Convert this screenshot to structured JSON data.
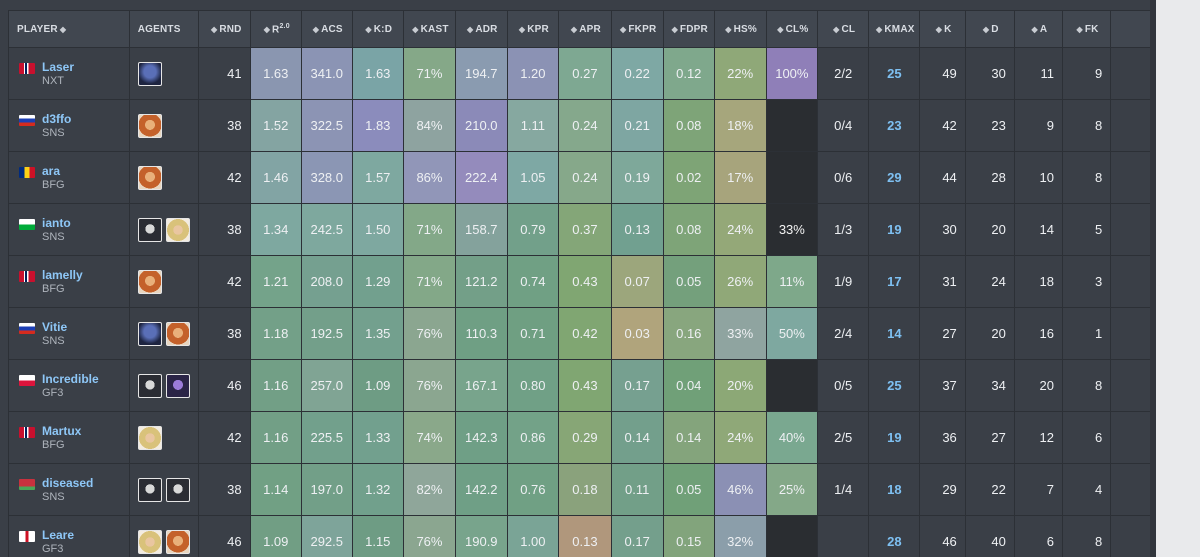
{
  "headers": {
    "player": "PLAYER",
    "agents": "AGENTS",
    "rnd": "RND",
    "rating_prefix": "R",
    "rating_sup": "2.0",
    "acs": "ACS",
    "kd": "K:D",
    "kast": "KAST",
    "adr": "ADR",
    "kpr": "KPR",
    "apr": "APR",
    "fkpr": "FKPR",
    "fdpr": "FDPR",
    "hs": "HS%",
    "clp": "CL%",
    "cl": "CL",
    "kmax": "KMAX",
    "k": "K",
    "d": "D",
    "a": "A",
    "fk": "FK"
  },
  "sort_icon": "sort-arrows-icon",
  "rows": [
    {
      "name": "Laser",
      "team": "NXT",
      "flag": "norway",
      "agents": [
        "agent-blue-hood",
        ""
      ],
      "rnd": "41",
      "rating": "1.63",
      "acs": "341.0",
      "kd": "1.63",
      "kast": "71%",
      "adr": "194.7",
      "kpr": "1.20",
      "apr": "0.27",
      "fkpr": "0.22",
      "fdpr": "0.12",
      "hs": "22%",
      "clp": "100%",
      "cl": "2/2",
      "kmax": "25",
      "k": "49",
      "d": "30",
      "a": "11",
      "fk": "9"
    },
    {
      "name": "d3ffo",
      "team": "SNS",
      "flag": "russia",
      "agents": [
        "agent-orange-helmet"
      ],
      "rnd": "38",
      "rating": "1.52",
      "acs": "322.5",
      "kd": "1.83",
      "kast": "84%",
      "adr": "210.0",
      "kpr": "1.11",
      "apr": "0.24",
      "fkpr": "0.21",
      "fdpr": "0.08",
      "hs": "18%",
      "clp": "",
      "cl": "0/4",
      "kmax": "23",
      "k": "42",
      "d": "23",
      "a": "9",
      "fk": "8"
    },
    {
      "name": "ara",
      "team": "BFG",
      "flag": "romania",
      "agents": [
        "agent-orange-helmet"
      ],
      "rnd": "42",
      "rating": "1.46",
      "acs": "328.0",
      "kd": "1.57",
      "kast": "86%",
      "adr": "222.4",
      "kpr": "1.05",
      "apr": "0.24",
      "fkpr": "0.19",
      "fdpr": "0.02",
      "hs": "17%",
      "clp": "",
      "cl": "0/6",
      "kmax": "29",
      "k": "44",
      "d": "28",
      "a": "10",
      "fk": "8"
    },
    {
      "name": "ianto",
      "team": "SNS",
      "flag": "wales",
      "agents": [
        "agent-dark-mask",
        "agent-blonde"
      ],
      "rnd": "38",
      "rating": "1.34",
      "acs": "242.5",
      "kd": "1.50",
      "kast": "71%",
      "adr": "158.7",
      "kpr": "0.79",
      "apr": "0.37",
      "fkpr": "0.13",
      "fdpr": "0.08",
      "hs": "24%",
      "clp": "33%",
      "cl": "1/3",
      "kmax": "19",
      "k": "30",
      "d": "20",
      "a": "14",
      "fk": "5"
    },
    {
      "name": "lamelly",
      "team": "BFG",
      "flag": "norway",
      "agents": [
        "agent-orange-helmet"
      ],
      "rnd": "42",
      "rating": "1.21",
      "acs": "208.0",
      "kd": "1.29",
      "kast": "71%",
      "adr": "121.2",
      "kpr": "0.74",
      "apr": "0.43",
      "fkpr": "0.07",
      "fdpr": "0.05",
      "hs": "26%",
      "clp": "11%",
      "cl": "1/9",
      "kmax": "17",
      "k": "31",
      "d": "24",
      "a": "18",
      "fk": "3"
    },
    {
      "name": "Vitie",
      "team": "SNS",
      "flag": "russia",
      "agents": [
        "agent-blue-hood",
        "agent-orange-helmet"
      ],
      "rnd": "38",
      "rating": "1.18",
      "acs": "192.5",
      "kd": "1.35",
      "kast": "76%",
      "adr": "110.3",
      "kpr": "0.71",
      "apr": "0.42",
      "fkpr": "0.03",
      "fdpr": "0.16",
      "hs": "33%",
      "clp": "50%",
      "cl": "2/4",
      "kmax": "14",
      "k": "27",
      "d": "20",
      "a": "16",
      "fk": "1"
    },
    {
      "name": "Incredible",
      "team": "GF3",
      "flag": "poland",
      "agents": [
        "agent-dark-mask",
        "agent-purple"
      ],
      "rnd": "46",
      "rating": "1.16",
      "acs": "257.0",
      "kd": "1.09",
      "kast": "76%",
      "adr": "167.1",
      "kpr": "0.80",
      "apr": "0.43",
      "fkpr": "0.17",
      "fdpr": "0.04",
      "hs": "20%",
      "clp": "",
      "cl": "0/5",
      "kmax": "25",
      "k": "37",
      "d": "34",
      "a": "20",
      "fk": "8"
    },
    {
      "name": "Martux",
      "team": "BFG",
      "flag": "norway",
      "agents": [
        "agent-blonde"
      ],
      "rnd": "42",
      "rating": "1.16",
      "acs": "225.5",
      "kd": "1.33",
      "kast": "74%",
      "adr": "142.3",
      "kpr": "0.86",
      "apr": "0.29",
      "fkpr": "0.14",
      "fdpr": "0.14",
      "hs": "24%",
      "clp": "40%",
      "cl": "2/5",
      "kmax": "19",
      "k": "36",
      "d": "27",
      "a": "12",
      "fk": "6"
    },
    {
      "name": "diseased",
      "team": "SNS",
      "flag": "belarus",
      "agents": [
        "agent-dark-mask",
        "agent-dark-mask"
      ],
      "rnd": "38",
      "rating": "1.14",
      "acs": "197.0",
      "kd": "1.32",
      "kast": "82%",
      "adr": "142.2",
      "kpr": "0.76",
      "apr": "0.18",
      "fkpr": "0.11",
      "fdpr": "0.05",
      "hs": "46%",
      "clp": "25%",
      "cl": "1/4",
      "kmax": "18",
      "k": "29",
      "d": "22",
      "a": "7",
      "fk": "4"
    },
    {
      "name": "Leare",
      "team": "GF3",
      "flag": "england",
      "agents": [
        "agent-blonde",
        "agent-orange-helmet"
      ],
      "rnd": "46",
      "rating": "1.09",
      "acs": "292.5",
      "kd": "1.15",
      "kast": "76%",
      "adr": "190.9",
      "kpr": "1.00",
      "apr": "0.13",
      "fkpr": "0.17",
      "fdpr": "0.15",
      "hs": "32%",
      "clp": "",
      "cl": "",
      "kmax": "28",
      "k": "46",
      "d": "40",
      "a": "6",
      "fk": "8"
    }
  ],
  "cell_colors": {
    "green_dark": "#6e9e72",
    "green_light": "#8ca97a",
    "teal": "#6fa39a",
    "blue_grey": "#7c8ca4",
    "purple": "#8f83b6",
    "olive": "#a0a47c",
    "tan": "#b09a7c",
    "empty": "#2a2d31"
  }
}
